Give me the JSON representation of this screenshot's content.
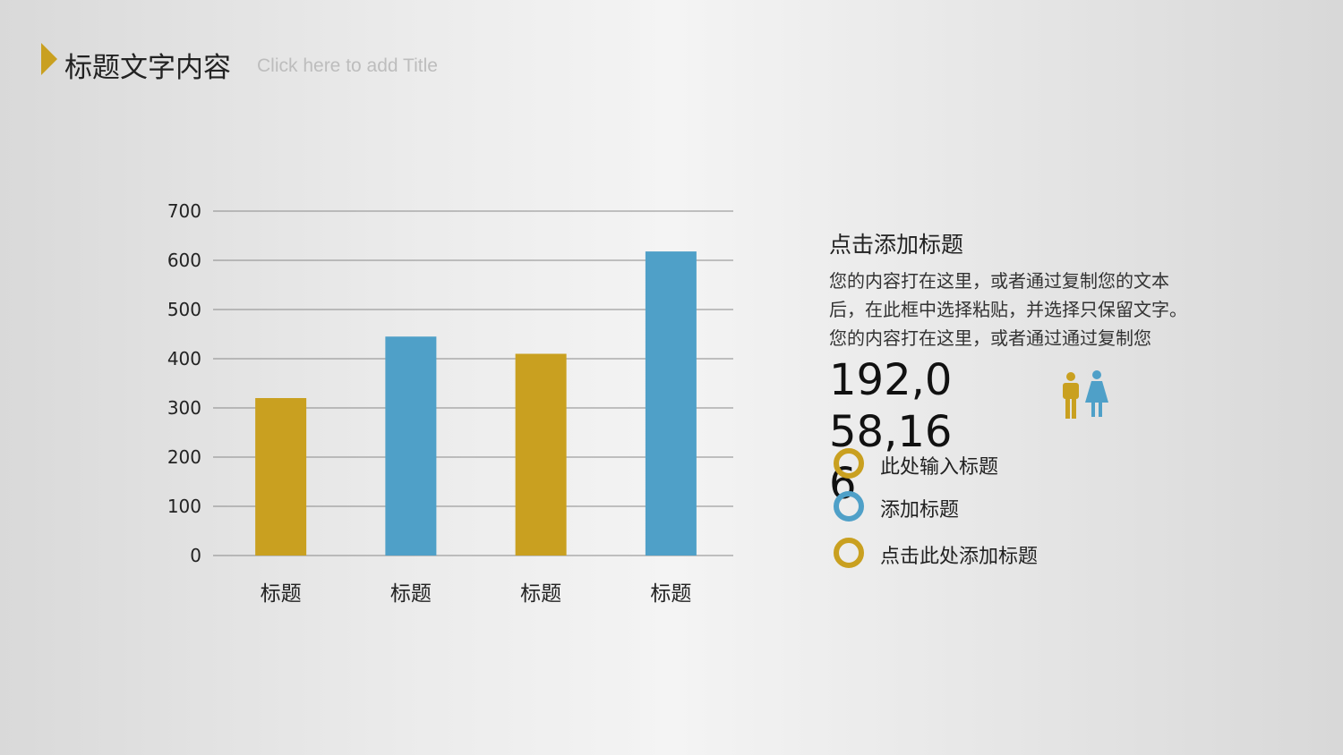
{
  "header": {
    "title": "标题文字内容",
    "subtitle": "Click here to add Title"
  },
  "chart_data": {
    "type": "bar",
    "categories": [
      "标题",
      "标题",
      "标题",
      "标题"
    ],
    "values": [
      320,
      445,
      410,
      618
    ],
    "colors": [
      "#c9a020",
      "#4fa0c8",
      "#c9a020",
      "#4fa0c8"
    ],
    "ylim": [
      0,
      700
    ],
    "yticks": [
      0,
      100,
      200,
      300,
      400,
      500,
      600,
      700
    ],
    "grid": true
  },
  "panel": {
    "heading": "点击添加标题",
    "body": [
      "您的内容打在这里，或者通过复制您的文本",
      "后，在此框中选择粘贴，并选择只保留文字。",
      "您的内容打在这里，或者通过通过复制您"
    ],
    "number": "192,058,166",
    "items": [
      {
        "label": "此处输入标题",
        "color": "#c9a020"
      },
      {
        "label": "添加标题",
        "color": "#4fa0c8"
      },
      {
        "label": "点击此处添加标题",
        "color": "#c9a020"
      }
    ]
  }
}
